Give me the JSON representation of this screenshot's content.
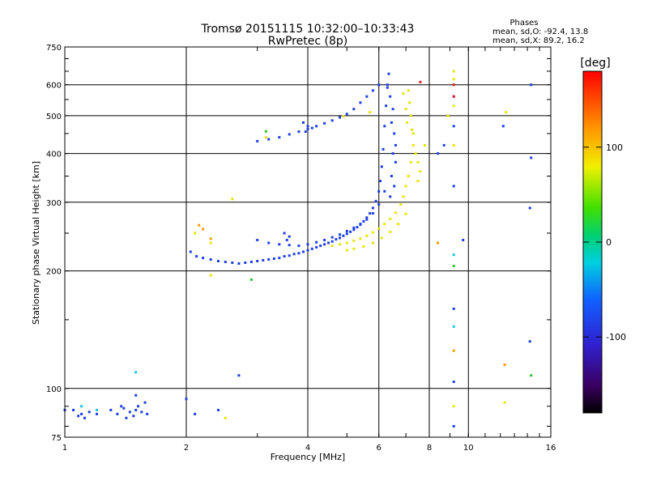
{
  "header": {
    "title": "Tromsø 20151115 10:32:00–10:33:43",
    "subtitle": "RwPretec (8p)",
    "phase_title": "Phases",
    "phase_line1": "mean, sd,O: -92.4, 13.8",
    "phase_line2": "mean, sd,X:  89.2, 16.2"
  },
  "colorbar": {
    "label": "[deg]",
    "ticks": [
      {
        "value": 100,
        "label": "100"
      },
      {
        "value": 0,
        "label": "0"
      },
      {
        "value": -100,
        "label": "-100"
      }
    ],
    "range": [
      -180,
      180
    ]
  },
  "chart_data": {
    "type": "scatter",
    "xlabel": "Frequency [MHz]",
    "ylabel": "Stationary phase Virtual Height [km]",
    "xscale": "log",
    "yscale": "log",
    "xlim": [
      1,
      16
    ],
    "ylim": [
      75,
      750
    ],
    "xticks": [
      {
        "value": 1,
        "label": "1"
      },
      {
        "value": 2,
        "label": "2"
      },
      {
        "value": 4,
        "label": "4"
      },
      {
        "value": 6,
        "label": "6"
      },
      {
        "value": 8,
        "label": "8"
      },
      {
        "value": 10,
        "label": "10"
      },
      {
        "value": 16,
        "label": "16"
      }
    ],
    "yticks": [
      {
        "value": 75,
        "label": "75"
      },
      {
        "value": 100,
        "label": "100"
      },
      {
        "value": 200,
        "label": "200"
      },
      {
        "value": 300,
        "label": "300"
      },
      {
        "value": 400,
        "label": "400"
      },
      {
        "value": 500,
        "label": "500"
      },
      {
        "value": 600,
        "label": "600"
      },
      {
        "value": 750,
        "label": "750"
      }
    ],
    "grid": true,
    "series": [
      {
        "mode": "O",
        "color": "#1f3fe6",
        "points": [
          [
            2.05,
            224
          ],
          [
            2.12,
            218
          ],
          [
            2.2,
            216
          ],
          [
            2.3,
            214
          ],
          [
            2.4,
            212
          ],
          [
            2.5,
            211
          ],
          [
            2.6,
            210
          ],
          [
            2.7,
            209
          ],
          [
            2.8,
            210
          ],
          [
            2.9,
            211
          ],
          [
            3.0,
            212
          ],
          [
            3.1,
            213
          ],
          [
            3.2,
            214
          ],
          [
            3.3,
            215
          ],
          [
            3.4,
            216
          ],
          [
            3.5,
            218
          ],
          [
            3.6,
            219
          ],
          [
            3.7,
            221
          ],
          [
            3.8,
            222
          ],
          [
            3.9,
            224
          ],
          [
            4.0,
            226
          ],
          [
            4.1,
            228
          ],
          [
            4.2,
            230
          ],
          [
            4.3,
            232
          ],
          [
            4.4,
            234
          ],
          [
            4.5,
            236
          ],
          [
            4.6,
            238
          ],
          [
            4.7,
            241
          ],
          [
            4.8,
            243
          ],
          [
            4.9,
            246
          ],
          [
            5.0,
            249
          ],
          [
            5.1,
            252
          ],
          [
            5.2,
            255
          ],
          [
            5.3,
            259
          ],
          [
            5.4,
            263
          ],
          [
            5.5,
            268
          ],
          [
            5.6,
            274
          ],
          [
            5.7,
            281
          ],
          [
            5.8,
            290
          ],
          [
            5.9,
            302
          ],
          [
            6.0,
            320
          ],
          [
            6.05,
            340
          ],
          [
            6.1,
            370
          ],
          [
            6.15,
            410
          ],
          [
            6.2,
            470
          ],
          [
            6.25,
            530
          ],
          [
            6.3,
            590
          ],
          [
            6.35,
            640
          ],
          [
            3.0,
            240
          ],
          [
            3.2,
            236
          ],
          [
            3.4,
            234
          ],
          [
            3.6,
            233
          ],
          [
            3.8,
            232
          ],
          [
            4.0,
            234
          ],
          [
            4.2,
            237
          ],
          [
            4.4,
            240
          ],
          [
            4.6,
            244
          ],
          [
            4.8,
            248
          ],
          [
            5.0,
            253
          ],
          [
            5.2,
            258
          ],
          [
            5.4,
            264
          ],
          [
            5.6,
            271
          ],
          [
            5.8,
            281
          ],
          [
            6.0,
            296
          ],
          [
            6.2,
            320
          ],
          [
            3.5,
            250
          ],
          [
            3.6,
            245
          ],
          [
            3.55,
            240
          ],
          [
            3.0,
            430
          ],
          [
            3.2,
            435
          ],
          [
            3.4,
            440
          ],
          [
            3.6,
            448
          ],
          [
            3.8,
            455
          ],
          [
            4.0,
            462
          ],
          [
            4.2,
            470
          ],
          [
            4.4,
            478
          ],
          [
            4.6,
            486
          ],
          [
            4.8,
            495
          ],
          [
            5.0,
            505
          ],
          [
            5.2,
            520
          ],
          [
            5.4,
            540
          ],
          [
            5.6,
            560
          ],
          [
            5.8,
            580
          ],
          [
            6.0,
            600
          ],
          [
            3.9,
            480
          ],
          [
            4.0,
            470
          ],
          [
            4.1,
            465
          ],
          [
            3.95,
            455
          ],
          [
            6.3,
            600
          ],
          [
            6.4,
            560
          ],
          [
            6.5,
            520
          ],
          [
            6.45,
            480
          ],
          [
            6.55,
            450
          ],
          [
            6.6,
            420
          ],
          [
            6.5,
            400
          ],
          [
            6.6,
            380
          ],
          [
            6.45,
            350
          ],
          [
            6.55,
            330
          ],
          [
            6.4,
            310
          ],
          [
            1.05,
            88
          ],
          [
            1.08,
            85
          ],
          [
            1.1,
            86
          ],
          [
            1.12,
            84
          ],
          [
            1.15,
            87
          ],
          [
            1.2,
            86
          ],
          [
            1.3,
            88
          ],
          [
            1.35,
            86
          ],
          [
            1.4,
            89
          ],
          [
            1.45,
            87
          ],
          [
            1.5,
            88
          ],
          [
            1.48,
            85
          ],
          [
            1.52,
            90
          ],
          [
            1.55,
            87
          ],
          [
            1.58,
            92
          ],
          [
            1.5,
            96
          ],
          [
            1.6,
            86
          ],
          [
            1.42,
            84
          ],
          [
            1.38,
            90
          ],
          [
            1.0,
            88
          ],
          [
            2.0,
            94
          ],
          [
            2.1,
            86
          ],
          [
            2.4,
            88
          ],
          [
            9.2,
            80
          ],
          [
            9.2,
            104
          ],
          [
            9.2,
            160
          ],
          [
            9.2,
            330
          ],
          [
            9.2,
            470
          ],
          [
            9.2,
            560
          ],
          [
            8.7,
            420
          ],
          [
            8.4,
            400
          ],
          [
            9.7,
            240
          ],
          [
            12.2,
            470
          ],
          [
            14.3,
            600
          ],
          [
            14.3,
            390
          ],
          [
            14.2,
            290
          ],
          [
            14.2,
            132
          ],
          [
            2.7,
            108
          ]
        ]
      },
      {
        "mode": "X",
        "color": "#e6e600",
        "points": [
          [
            4.6,
            232
          ],
          [
            4.8,
            234
          ],
          [
            5.0,
            236
          ],
          [
            5.2,
            239
          ],
          [
            5.4,
            242
          ],
          [
            5.6,
            246
          ],
          [
            5.8,
            251
          ],
          [
            6.0,
            257
          ],
          [
            6.2,
            264
          ],
          [
            6.4,
            272
          ],
          [
            6.6,
            282
          ],
          [
            6.8,
            296
          ],
          [
            6.9,
            310
          ],
          [
            7.0,
            330
          ],
          [
            7.1,
            350
          ],
          [
            7.2,
            380
          ],
          [
            7.3,
            420
          ],
          [
            7.25,
            460
          ],
          [
            7.2,
            500
          ],
          [
            7.15,
            540
          ],
          [
            7.1,
            580
          ],
          [
            5.0,
            226
          ],
          [
            5.2,
            228
          ],
          [
            5.5,
            231
          ],
          [
            5.8,
            236
          ],
          [
            6.1,
            243
          ],
          [
            6.4,
            252
          ],
          [
            6.7,
            264
          ],
          [
            7.0,
            280
          ],
          [
            6.9,
            570
          ],
          [
            7.0,
            520
          ],
          [
            7.05,
            480
          ],
          [
            7.3,
            450
          ],
          [
            7.4,
            400
          ],
          [
            7.5,
            380
          ],
          [
            7.6,
            360
          ],
          [
            7.5,
            340
          ],
          [
            7.8,
            420
          ],
          [
            9.2,
            620
          ],
          [
            9.2,
            650
          ],
          [
            9.2,
            530
          ],
          [
            9.2,
            420
          ],
          [
            9.2,
            90
          ],
          [
            2.1,
            250
          ],
          [
            2.3,
            236
          ],
          [
            2.3,
            195
          ],
          [
            2.6,
            306
          ],
          [
            4.9,
            498
          ],
          [
            5.7,
            510
          ],
          [
            8.9,
            500
          ],
          [
            12.4,
            510
          ],
          [
            12.3,
            92
          ],
          [
            3.15,
            440
          ],
          [
            2.5,
            84
          ]
        ]
      },
      {
        "mode": "green",
        "color": "#2fc52f",
        "points": [
          [
            3.15,
            456
          ],
          [
            2.9,
            190
          ],
          [
            9.2,
            206
          ],
          [
            14.3,
            108
          ]
        ]
      },
      {
        "mode": "cyan",
        "color": "#19c3e8",
        "points": [
          [
            1.1,
            90
          ],
          [
            1.2,
            88
          ],
          [
            1.5,
            110
          ],
          [
            9.2,
            220
          ],
          [
            9.2,
            144
          ]
        ]
      },
      {
        "mode": "orange",
        "color": "#ff9a00",
        "points": [
          [
            2.15,
            262
          ],
          [
            2.2,
            256
          ],
          [
            2.3,
            242
          ],
          [
            8.4,
            236
          ],
          [
            12.3,
            115
          ],
          [
            9.2,
            125
          ]
        ]
      },
      {
        "mode": "red",
        "color": "#e02020",
        "points": [
          [
            9.2,
            560
          ],
          [
            7.6,
            610
          ],
          [
            9.2,
            600
          ]
        ]
      }
    ]
  }
}
